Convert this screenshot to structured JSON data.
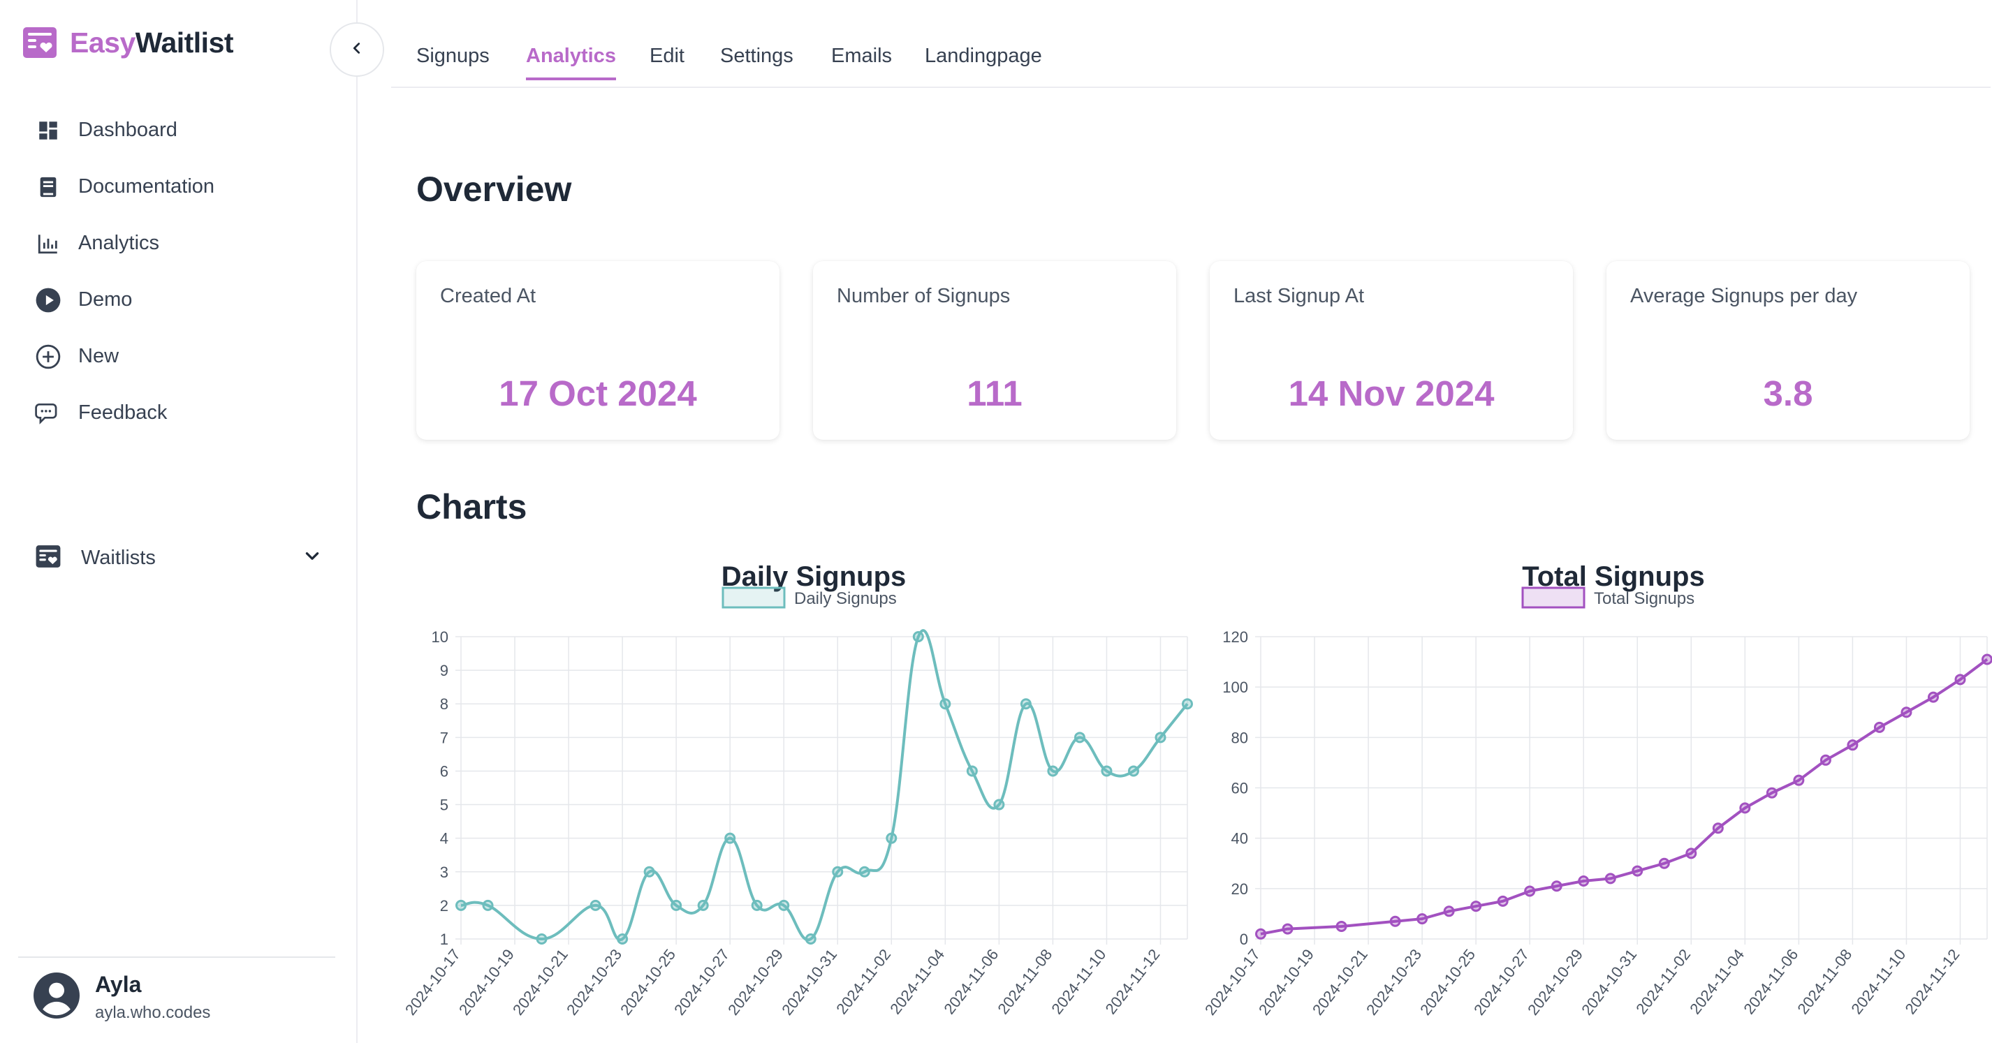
{
  "brand": {
    "part1": "Easy",
    "part2": "Waitlist"
  },
  "sidebar": {
    "items": [
      {
        "label": "Dashboard",
        "icon": "dashboard-icon"
      },
      {
        "label": "Documentation",
        "icon": "book-icon"
      },
      {
        "label": "Analytics",
        "icon": "bar-chart-icon"
      },
      {
        "label": "Demo",
        "icon": "play-icon"
      },
      {
        "label": "New",
        "icon": "plus-circle-icon"
      },
      {
        "label": "Feedback",
        "icon": "chat-icon"
      }
    ],
    "waitlists_label": "Waitlists"
  },
  "user": {
    "name": "Ayla",
    "email": "ayla.who.codes"
  },
  "tabs": [
    {
      "label": "Signups",
      "active": false
    },
    {
      "label": "Analytics",
      "active": true
    },
    {
      "label": "Edit",
      "active": false
    },
    {
      "label": "Settings",
      "active": false
    },
    {
      "label": "Emails",
      "active": false
    },
    {
      "label": "Landingpage",
      "active": false
    }
  ],
  "overview": {
    "title": "Overview",
    "cards": [
      {
        "title": "Created At",
        "value": "17 Oct 2024"
      },
      {
        "title": "Number of Signups",
        "value": "111"
      },
      {
        "title": "Last Signup At",
        "value": "14 Nov 2024"
      },
      {
        "title": "Average Signups per day",
        "value": "3.8"
      }
    ]
  },
  "charts_title": "Charts",
  "colors": {
    "accent": "#b86ac9",
    "teal": "#6dbdbd",
    "purple": "#a251c0"
  },
  "chart_data": [
    {
      "type": "line",
      "title": "Daily Signups",
      "legend": "Daily Signups",
      "color": "#6dbdbd",
      "smooth": true,
      "x": [
        "2024-10-17",
        "2024-10-18",
        "2024-10-20",
        "2024-10-22",
        "2024-10-23",
        "2024-10-24",
        "2024-10-25",
        "2024-10-26",
        "2024-10-27",
        "2024-10-28",
        "2024-10-29",
        "2024-10-30",
        "2024-10-31",
        "2024-11-01",
        "2024-11-02",
        "2024-11-03",
        "2024-11-04",
        "2024-11-05",
        "2024-11-06",
        "2024-11-07",
        "2024-11-08",
        "2024-11-09",
        "2024-11-10",
        "2024-11-11",
        "2024-11-12",
        "2024-11-13"
      ],
      "y": [
        2,
        2,
        1,
        2,
        1,
        3,
        2,
        2,
        4,
        2,
        2,
        1,
        3,
        3,
        4,
        10,
        8,
        6,
        5,
        8,
        6,
        7,
        6,
        6,
        7,
        8
      ],
      "xticks": [
        "2024-10-17",
        "2024-10-19",
        "2024-10-21",
        "2024-10-23",
        "2024-10-25",
        "2024-10-27",
        "2024-10-29",
        "2024-10-31",
        "2024-11-02",
        "2024-11-04",
        "2024-11-06",
        "2024-11-08",
        "2024-11-10",
        "2024-11-12"
      ],
      "yticks": [
        1,
        2,
        3,
        4,
        5,
        6,
        7,
        8,
        9,
        10
      ],
      "ylim": [
        1,
        10
      ],
      "grid": true,
      "legend_position": "top"
    },
    {
      "type": "line",
      "title": "Total Signups",
      "legend": "Total Signups",
      "color": "#a251c0",
      "smooth": false,
      "x": [
        "2024-10-17",
        "2024-10-18",
        "2024-10-20",
        "2024-10-22",
        "2024-10-23",
        "2024-10-24",
        "2024-10-25",
        "2024-10-26",
        "2024-10-27",
        "2024-10-28",
        "2024-10-29",
        "2024-10-30",
        "2024-10-31",
        "2024-11-01",
        "2024-11-02",
        "2024-11-03",
        "2024-11-04",
        "2024-11-05",
        "2024-11-06",
        "2024-11-07",
        "2024-11-08",
        "2024-11-09",
        "2024-11-10",
        "2024-11-11",
        "2024-11-12",
        "2024-11-13"
      ],
      "y": [
        2,
        4,
        5,
        7,
        8,
        11,
        13,
        15,
        19,
        21,
        23,
        24,
        27,
        30,
        34,
        44,
        52,
        58,
        63,
        71,
        77,
        84,
        90,
        96,
        103,
        111
      ],
      "xticks": [
        "2024-10-17",
        "2024-10-19",
        "2024-10-21",
        "2024-10-23",
        "2024-10-25",
        "2024-10-27",
        "2024-10-29",
        "2024-10-31",
        "2024-11-02",
        "2024-11-04",
        "2024-11-06",
        "2024-11-08",
        "2024-11-10",
        "2024-11-12"
      ],
      "yticks": [
        0,
        20,
        40,
        60,
        80,
        100,
        120
      ],
      "ylim": [
        0,
        120
      ],
      "grid": true,
      "legend_position": "top"
    }
  ]
}
